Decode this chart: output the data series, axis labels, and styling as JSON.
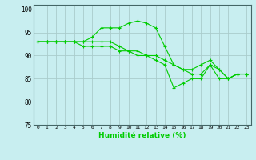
{
  "xlabel": "Humidité relative (%)",
  "x": [
    0,
    1,
    2,
    3,
    4,
    5,
    6,
    7,
    8,
    9,
    10,
    11,
    12,
    13,
    14,
    15,
    16,
    17,
    18,
    19,
    20,
    21,
    22,
    23
  ],
  "line_max": [
    93,
    93,
    93,
    93,
    93,
    93,
    94,
    96,
    96,
    96,
    97,
    97.5,
    97,
    96,
    92,
    88,
    87,
    87,
    88,
    89,
    87,
    85,
    86,
    86
  ],
  "line_mean": [
    93,
    93,
    93,
    93,
    93,
    93,
    93,
    93,
    93,
    92,
    91,
    91,
    90,
    90,
    89,
    88,
    87,
    86,
    86,
    88,
    87,
    85,
    86,
    86
  ],
  "line_min": [
    93,
    93,
    93,
    93,
    93,
    92,
    92,
    92,
    92,
    91,
    91,
    90,
    90,
    89,
    88,
    83,
    84,
    85,
    85,
    88,
    85,
    85,
    86,
    86
  ],
  "line_color": "#00cc00",
  "bg_color": "#c8eef0",
  "grid_color": "#aacccc",
  "ylim": [
    75,
    101
  ],
  "yticks": [
    75,
    80,
    85,
    90,
    95,
    100
  ],
  "xtick_labels": [
    "0",
    "1",
    "2",
    "3",
    "4",
    "5",
    "6",
    "7",
    "8",
    "9",
    "10",
    "11",
    "12",
    "13",
    "14",
    "15",
    "16",
    "17",
    "18",
    "19",
    "20",
    "21",
    "22",
    "23"
  ]
}
